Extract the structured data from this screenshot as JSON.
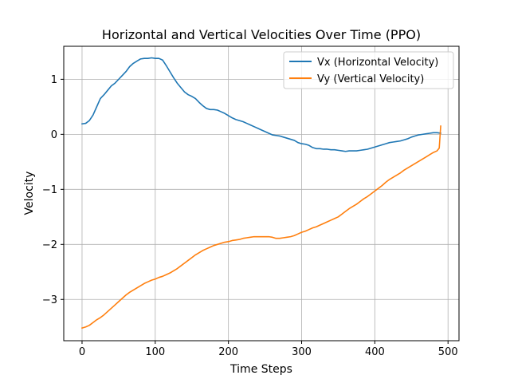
{
  "chart_data": {
    "type": "line",
    "title": "Horizontal and Vertical Velocities Over Time (PPO)",
    "xlabel": "Time Steps",
    "ylabel": "Velocity",
    "xlim": [
      -25,
      515
    ],
    "ylim": [
      -3.75,
      1.6
    ],
    "xticks": [
      0,
      100,
      200,
      300,
      400,
      500
    ],
    "xtick_labels": [
      "0",
      "100",
      "200",
      "300",
      "400",
      "500"
    ],
    "yticks": [
      -3,
      -2,
      -1,
      0,
      1
    ],
    "ytick_labels": [
      "−3",
      "−2",
      "−1",
      "0",
      "1"
    ],
    "grid": true,
    "legend_position": "top-right",
    "series": [
      {
        "name": "Vx (Horizontal Velocity)",
        "color": "#1f77b4",
        "x": [
          0,
          5,
          10,
          15,
          20,
          25,
          30,
          35,
          40,
          45,
          50,
          55,
          60,
          65,
          70,
          75,
          80,
          85,
          90,
          95,
          100,
          105,
          110,
          115,
          120,
          125,
          130,
          135,
          140,
          145,
          150,
          155,
          160,
          165,
          170,
          175,
          180,
          185,
          190,
          195,
          200,
          205,
          210,
          215,
          220,
          225,
          230,
          235,
          240,
          245,
          250,
          255,
          260,
          265,
          270,
          275,
          280,
          285,
          290,
          295,
          300,
          305,
          310,
          315,
          320,
          325,
          330,
          335,
          340,
          345,
          350,
          355,
          360,
          365,
          370,
          375,
          380,
          385,
          390,
          395,
          400,
          405,
          410,
          415,
          420,
          425,
          430,
          435,
          440,
          445,
          450,
          455,
          460,
          465,
          470,
          475,
          480,
          485,
          490
        ],
        "values": [
          0.19,
          0.2,
          0.25,
          0.35,
          0.5,
          0.65,
          0.72,
          0.8,
          0.88,
          0.93,
          1.0,
          1.07,
          1.14,
          1.23,
          1.29,
          1.33,
          1.37,
          1.38,
          1.38,
          1.39,
          1.38,
          1.38,
          1.35,
          1.25,
          1.14,
          1.03,
          0.93,
          0.85,
          0.77,
          0.72,
          0.69,
          0.65,
          0.58,
          0.52,
          0.47,
          0.45,
          0.45,
          0.44,
          0.41,
          0.38,
          0.34,
          0.3,
          0.27,
          0.25,
          0.23,
          0.2,
          0.17,
          0.14,
          0.11,
          0.08,
          0.05,
          0.02,
          -0.01,
          -0.02,
          -0.03,
          -0.05,
          -0.07,
          -0.09,
          -0.11,
          -0.15,
          -0.17,
          -0.18,
          -0.2,
          -0.24,
          -0.26,
          -0.26,
          -0.27,
          -0.27,
          -0.28,
          -0.28,
          -0.29,
          -0.3,
          -0.31,
          -0.3,
          -0.3,
          -0.3,
          -0.29,
          -0.28,
          -0.27,
          -0.25,
          -0.23,
          -0.21,
          -0.19,
          -0.17,
          -0.15,
          -0.14,
          -0.13,
          -0.12,
          -0.1,
          -0.08,
          -0.05,
          -0.03,
          -0.01,
          0.0,
          0.01,
          0.02,
          0.03,
          0.03,
          0.02
        ]
      },
      {
        "name": "Vy (Vertical Velocity)",
        "color": "#ff7f0e",
        "x": [
          0,
          5,
          10,
          15,
          20,
          25,
          30,
          35,
          40,
          45,
          50,
          55,
          60,
          65,
          70,
          75,
          80,
          85,
          90,
          95,
          100,
          105,
          110,
          115,
          120,
          125,
          130,
          135,
          140,
          145,
          150,
          155,
          160,
          165,
          170,
          175,
          180,
          185,
          190,
          195,
          200,
          205,
          210,
          215,
          220,
          225,
          230,
          235,
          240,
          245,
          250,
          255,
          260,
          265,
          270,
          275,
          280,
          285,
          290,
          295,
          300,
          305,
          310,
          315,
          320,
          325,
          330,
          335,
          340,
          345,
          350,
          355,
          360,
          365,
          370,
          375,
          380,
          385,
          390,
          395,
          400,
          405,
          410,
          415,
          420,
          425,
          430,
          435,
          440,
          445,
          450,
          455,
          460,
          465,
          470,
          475,
          480,
          485,
          488,
          490
        ],
        "values": [
          -3.52,
          -3.5,
          -3.47,
          -3.42,
          -3.37,
          -3.33,
          -3.28,
          -3.22,
          -3.16,
          -3.1,
          -3.04,
          -2.98,
          -2.92,
          -2.87,
          -2.83,
          -2.79,
          -2.75,
          -2.71,
          -2.68,
          -2.65,
          -2.63,
          -2.6,
          -2.58,
          -2.55,
          -2.52,
          -2.48,
          -2.44,
          -2.39,
          -2.34,
          -2.29,
          -2.24,
          -2.19,
          -2.15,
          -2.11,
          -2.08,
          -2.05,
          -2.02,
          -2.0,
          -1.98,
          -1.96,
          -1.95,
          -1.93,
          -1.92,
          -1.91,
          -1.89,
          -1.88,
          -1.87,
          -1.86,
          -1.86,
          -1.86,
          -1.86,
          -1.86,
          -1.87,
          -1.89,
          -1.89,
          -1.88,
          -1.87,
          -1.86,
          -1.84,
          -1.81,
          -1.78,
          -1.76,
          -1.73,
          -1.7,
          -1.68,
          -1.65,
          -1.62,
          -1.59,
          -1.56,
          -1.53,
          -1.5,
          -1.45,
          -1.4,
          -1.35,
          -1.31,
          -1.27,
          -1.22,
          -1.17,
          -1.13,
          -1.08,
          -1.03,
          -0.98,
          -0.93,
          -0.87,
          -0.82,
          -0.78,
          -0.74,
          -0.7,
          -0.65,
          -0.61,
          -0.57,
          -0.53,
          -0.49,
          -0.45,
          -0.41,
          -0.37,
          -0.33,
          -0.3,
          -0.25,
          0.15
        ]
      }
    ]
  }
}
